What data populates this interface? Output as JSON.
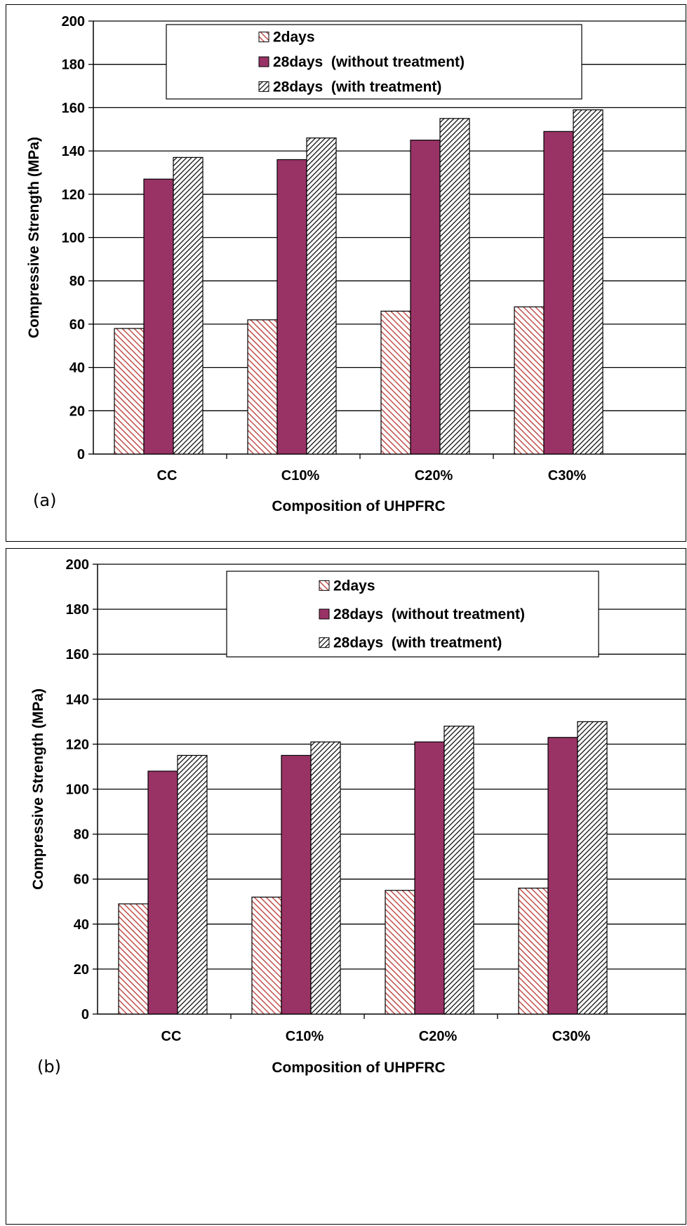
{
  "colors": {
    "2days": "#c0504d",
    "28days_without": "#993366",
    "28days_with": "#000000",
    "grid": "#000000",
    "background": "#ffffff"
  },
  "chart_data": [
    {
      "type": "bar",
      "panel_label": "(a)",
      "categories": [
        "CC",
        "C10%",
        "C20%",
        "C30%"
      ],
      "series": [
        {
          "name": "2days",
          "values": [
            58,
            62,
            66,
            68
          ]
        },
        {
          "name": "28days  (without treatment)",
          "values": [
            127,
            136,
            145,
            149
          ]
        },
        {
          "name": "28days  (with treatment)",
          "values": [
            137,
            146,
            155,
            159
          ]
        }
      ],
      "xlabel": "Composition of UHPFRC",
      "ylabel": "Compressive Strength (MPa)",
      "ylim": [
        0,
        200
      ],
      "yticks": [
        "0",
        "20",
        "40",
        "60",
        "80",
        "100",
        "120",
        "140",
        "160",
        "180",
        "200"
      ],
      "grid": true,
      "legend_position": "top"
    },
    {
      "type": "bar",
      "panel_label": "(b)",
      "categories": [
        "CC",
        "C10%",
        "C20%",
        "C30%"
      ],
      "series": [
        {
          "name": "2days",
          "values": [
            49,
            52,
            55,
            56
          ]
        },
        {
          "name": "28days  (without treatment)",
          "values": [
            108,
            115,
            121,
            123
          ]
        },
        {
          "name": "28days  (with treatment)",
          "values": [
            115,
            121,
            128,
            130
          ]
        }
      ],
      "xlabel": "Composition of UHPFRC",
      "ylabel": "Compressive Strength (MPa)",
      "ylim": [
        0,
        200
      ],
      "yticks": [
        "0",
        "20",
        "40",
        "60",
        "80",
        "100",
        "120",
        "140",
        "160",
        "180",
        "200"
      ],
      "grid": true,
      "legend_position": "top"
    }
  ]
}
